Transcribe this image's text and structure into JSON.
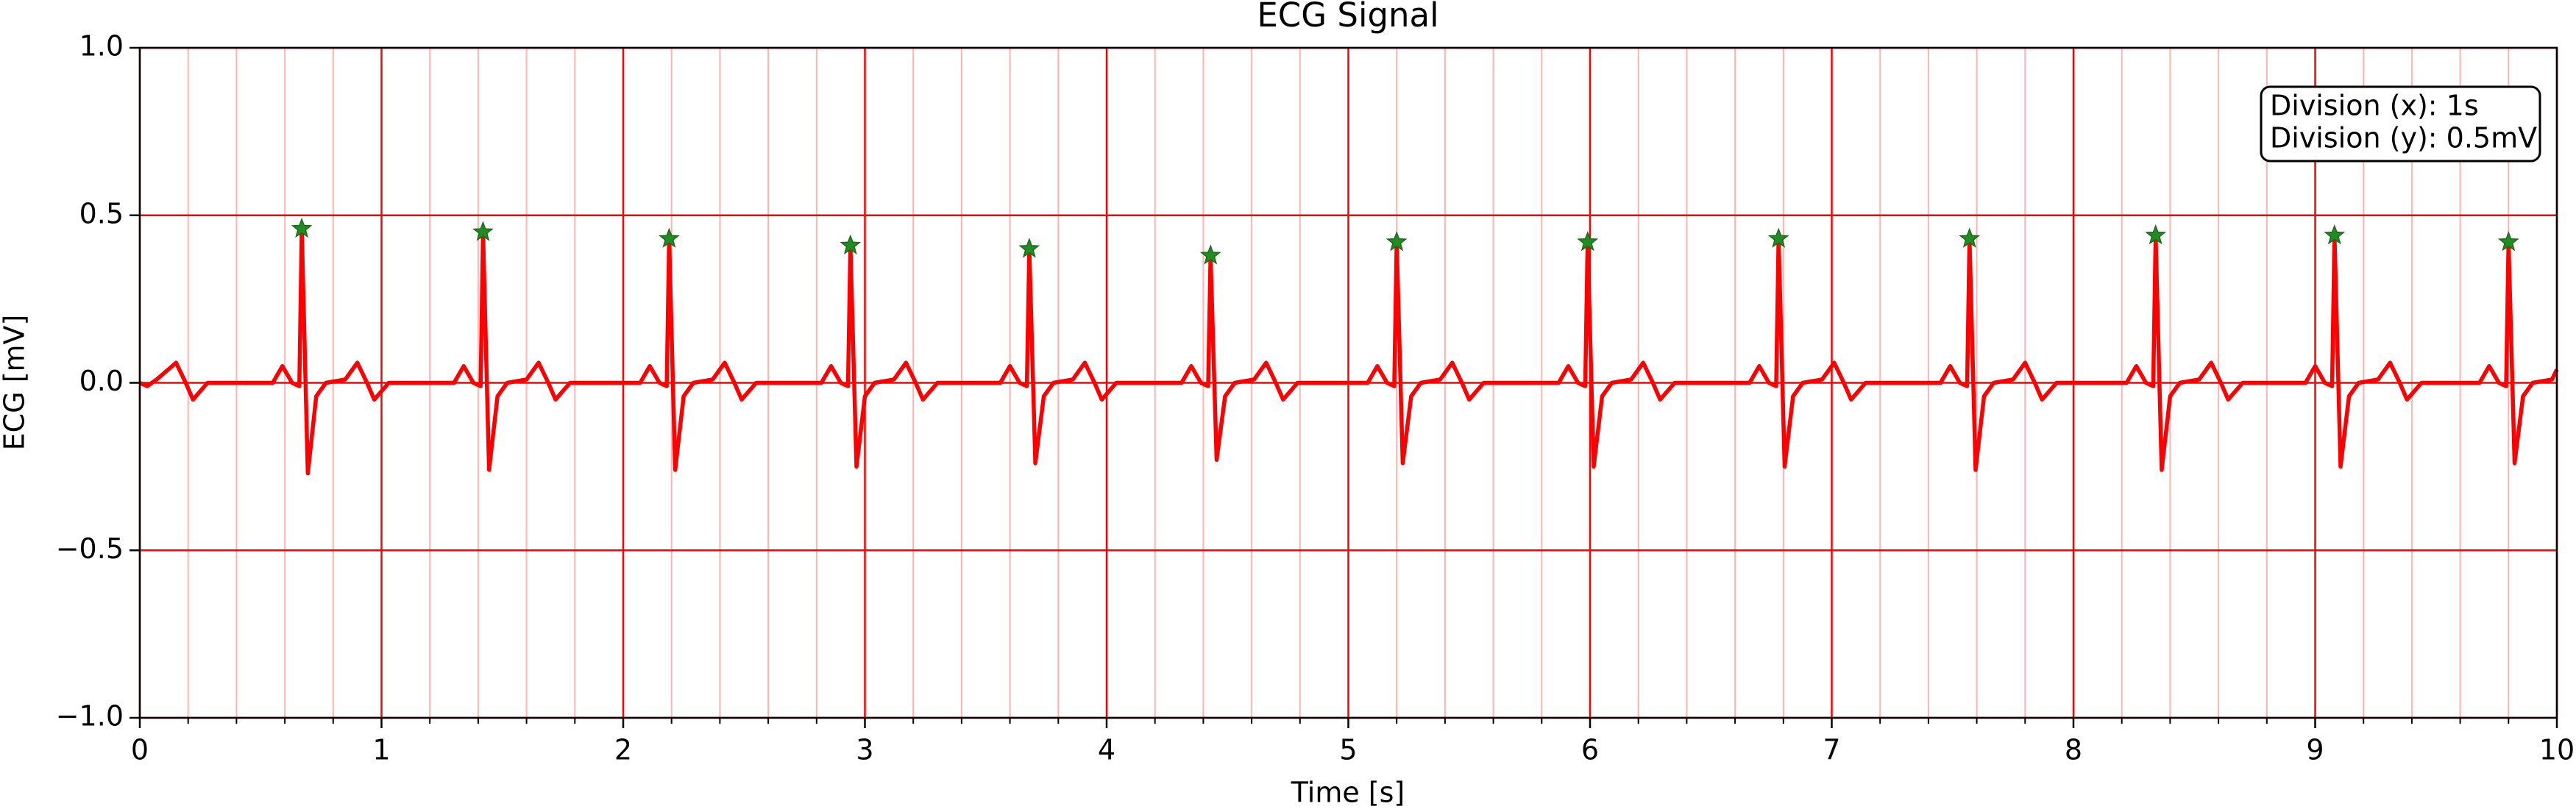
{
  "chart_data": {
    "type": "line",
    "title": "ECG Signal",
    "xlabel": "Time [s]",
    "ylabel": "ECG [mV]",
    "xlim": [
      0,
      10
    ],
    "ylim": [
      -1,
      1
    ],
    "xticks": [
      0,
      1,
      2,
      3,
      4,
      5,
      6,
      7,
      8,
      9,
      10
    ],
    "x_minor_ticks": [
      0.2,
      0.4,
      0.6,
      0.8,
      1.2,
      1.4,
      1.6,
      1.8,
      2.2,
      2.4,
      2.6,
      2.8,
      3.2,
      3.4,
      3.6,
      3.8,
      4.2,
      4.4,
      4.6,
      4.8,
      5.2,
      5.4,
      5.6,
      5.8,
      6.2,
      6.4,
      6.6,
      6.8,
      7.2,
      7.4,
      7.6,
      7.8,
      8.2,
      8.4,
      8.6,
      8.8,
      9.2,
      9.4,
      9.6,
      9.8
    ],
    "yticks": [
      {
        "value": -1,
        "label": "−1.0"
      },
      {
        "value": -0.5,
        "label": "−0.5"
      },
      {
        "value": 0,
        "label": "0.0"
      },
      {
        "value": 0.5,
        "label": "0.5"
      },
      {
        "value": 1,
        "label": "1.0"
      }
    ],
    "grid": true,
    "x": [
      0,
      0.03,
      0.07,
      0.15,
      0.19,
      0.22,
      0.28,
      0.55,
      0.59,
      0.63,
      0.66,
      0.67,
      0.695,
      0.73,
      0.77,
      0.85,
      0.9,
      0.94,
      0.97,
      1.03,
      1.3,
      1.34,
      1.38,
      1.41,
      1.42,
      1.445,
      1.48,
      1.52,
      1.6,
      1.65,
      1.69,
      1.72,
      1.78,
      2.07,
      2.11,
      2.15,
      2.18,
      2.19,
      2.215,
      2.25,
      2.29,
      2.37,
      2.42,
      2.46,
      2.49,
      2.55,
      2.82,
      2.86,
      2.9,
      2.93,
      2.94,
      2.965,
      3.0,
      3.04,
      3.12,
      3.17,
      3.21,
      3.24,
      3.3,
      3.56,
      3.6,
      3.64,
      3.67,
      3.68,
      3.705,
      3.74,
      3.78,
      3.86,
      3.91,
      3.95,
      3.98,
      4.04,
      4.31,
      4.35,
      4.39,
      4.42,
      4.43,
      4.455,
      4.49,
      4.53,
      4.61,
      4.66,
      4.7,
      4.73,
      4.79,
      5.08,
      5.12,
      5.16,
      5.19,
      5.2,
      5.225,
      5.26,
      5.3,
      5.38,
      5.43,
      5.47,
      5.5,
      5.56,
      5.87,
      5.91,
      5.95,
      5.98,
      5.99,
      6.015,
      6.05,
      6.09,
      6.17,
      6.22,
      6.26,
      6.29,
      6.35,
      6.66,
      6.7,
      6.74,
      6.77,
      6.78,
      6.805,
      6.84,
      6.88,
      6.96,
      7.01,
      7.05,
      7.08,
      7.14,
      7.45,
      7.49,
      7.53,
      7.56,
      7.57,
      7.595,
      7.63,
      7.67,
      7.75,
      7.8,
      7.84,
      7.87,
      7.93,
      8.22,
      8.26,
      8.3,
      8.33,
      8.34,
      8.365,
      8.4,
      8.44,
      8.52,
      8.57,
      8.61,
      8.64,
      8.7,
      8.96,
      9.0,
      9.04,
      9.07,
      9.08,
      9.105,
      9.14,
      9.18,
      9.26,
      9.31,
      9.35,
      9.38,
      9.44,
      9.68,
      9.72,
      9.76,
      9.79,
      9.8,
      9.825,
      9.86,
      9.9,
      9.98,
      10.0
    ],
    "series": [
      {
        "color": "#ff0000",
        "values": [
          0,
          -0.01,
          0.01,
          0.06,
          0,
          -0.05,
          0,
          0,
          0.05,
          0,
          -0.01,
          0.46,
          -0.27,
          -0.04,
          0,
          0.01,
          0.06,
          0,
          -0.05,
          0,
          0,
          0.05,
          0,
          -0.01,
          0.45,
          -0.26,
          -0.04,
          0,
          0.01,
          0.06,
          0,
          -0.05,
          0,
          0,
          0.05,
          0,
          -0.01,
          0.43,
          -0.26,
          -0.04,
          0,
          0.01,
          0.06,
          0,
          -0.05,
          0,
          0,
          0.05,
          0,
          -0.01,
          0.41,
          -0.25,
          -0.04,
          0,
          0.01,
          0.06,
          0,
          -0.05,
          0,
          0,
          0.05,
          0,
          -0.01,
          0.4,
          -0.24,
          -0.04,
          0,
          0.01,
          0.06,
          0,
          -0.05,
          0,
          0,
          0.05,
          0,
          -0.01,
          0.38,
          -0.23,
          -0.04,
          0,
          0.01,
          0.06,
          0,
          -0.05,
          0,
          0,
          0.05,
          0,
          -0.01,
          0.42,
          -0.24,
          -0.04,
          0,
          0.01,
          0.06,
          0,
          -0.05,
          0,
          0,
          0.05,
          0,
          -0.01,
          0.42,
          -0.25,
          -0.04,
          0,
          0.01,
          0.06,
          0,
          -0.05,
          0,
          0,
          0.05,
          0,
          -0.01,
          0.43,
          -0.25,
          -0.04,
          0,
          0.01,
          0.06,
          0,
          -0.05,
          0,
          0,
          0.05,
          0,
          -0.01,
          0.43,
          -0.26,
          -0.04,
          0,
          0.01,
          0.06,
          0,
          -0.05,
          0,
          0,
          0.05,
          0,
          -0.01,
          0.44,
          -0.26,
          -0.04,
          0,
          0.01,
          0.06,
          0,
          -0.05,
          0,
          0,
          0.05,
          0,
          -0.01,
          0.44,
          -0.25,
          -0.04,
          0,
          0.01,
          0.06,
          0,
          -0.05,
          0,
          0,
          0.05,
          0,
          -0.01,
          0.42,
          -0.24,
          -0.04,
          0,
          0.01,
          0.04
        ]
      }
    ],
    "markers": {
      "color": "#228b22",
      "x": [
        0.67,
        1.42,
        2.19,
        2.94,
        3.68,
        4.43,
        5.2,
        5.99,
        6.78,
        7.57,
        8.34,
        9.08,
        9.8
      ],
      "values": [
        0.46,
        0.45,
        0.43,
        0.41,
        0.4,
        0.38,
        0.42,
        0.42,
        0.43,
        0.43,
        0.44,
        0.44,
        0.42
      ]
    },
    "annotation": [
      "Division (x): 1s",
      "Division (y): 0.5mV"
    ]
  }
}
